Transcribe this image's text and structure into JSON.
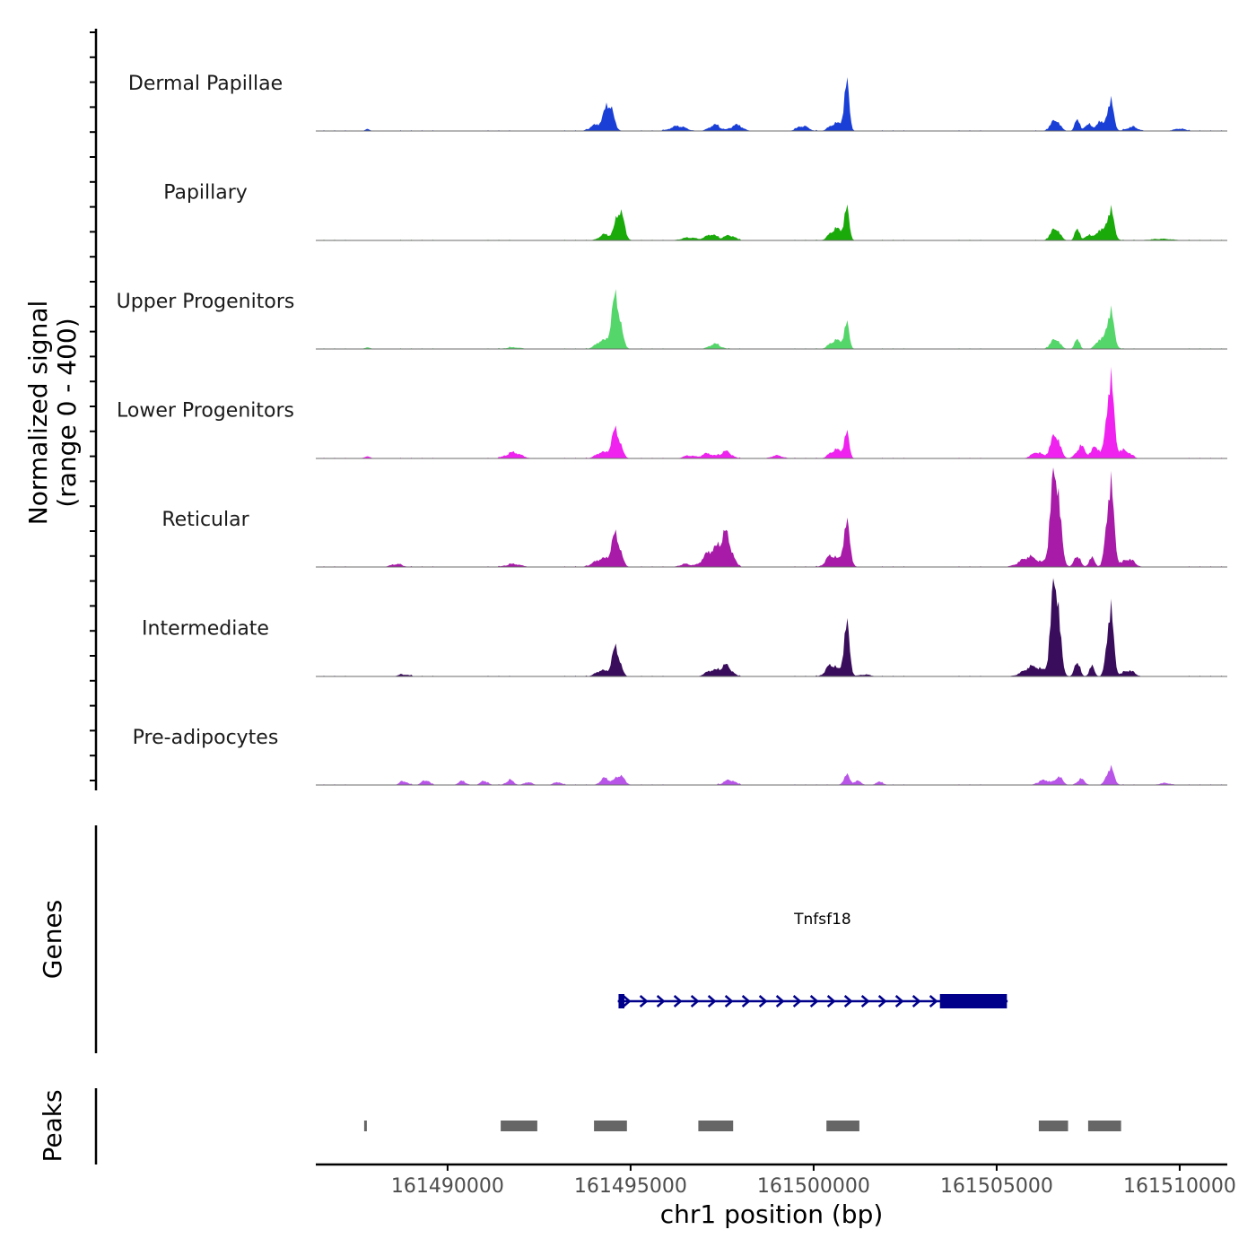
{
  "chart_data": {
    "type": "area",
    "title": "",
    "xlabel": "chr1 position (bp)",
    "ylabel_line1": "Normalized signal",
    "ylabel_line2": "(range 0 - 400)",
    "genes_label": "Genes",
    "peaks_label": "Peaks",
    "xlim": [
      161486400,
      161511300
    ],
    "ylim": [
      0,
      400
    ],
    "x_ticks": [
      161490000,
      161495000,
      161500000,
      161505000,
      161510000
    ],
    "x_tick_labels": [
      "161490000",
      "161495000",
      "161500000",
      "161505000",
      "161510000"
    ],
    "series": [
      {
        "name": "Dermal Papillae",
        "color": "#1a3fd6",
        "peaks": [
          [
            161487800,
            10,
            60
          ],
          [
            161494400,
            140,
            120
          ],
          [
            161494050,
            30,
            150
          ],
          [
            161496300,
            25,
            200
          ],
          [
            161497300,
            30,
            150
          ],
          [
            161497900,
            30,
            150
          ],
          [
            161499700,
            25,
            150
          ],
          [
            161500600,
            40,
            150
          ],
          [
            161500900,
            230,
            70
          ],
          [
            161506600,
            55,
            120
          ],
          [
            161507200,
            70,
            60
          ],
          [
            161507500,
            40,
            80
          ],
          [
            161507800,
            50,
            80
          ],
          [
            161508100,
            150,
            90
          ],
          [
            161508700,
            20,
            150
          ],
          [
            161510000,
            12,
            150
          ]
        ]
      },
      {
        "name": "Papillary",
        "color": "#1aaa0a",
        "peaks": [
          [
            161494300,
            30,
            150
          ],
          [
            161494700,
            155,
            110
          ],
          [
            161496600,
            15,
            200
          ],
          [
            161497200,
            30,
            150
          ],
          [
            161497700,
            25,
            150
          ],
          [
            161500600,
            60,
            150
          ],
          [
            161500900,
            150,
            70
          ],
          [
            161506600,
            60,
            120
          ],
          [
            161507200,
            70,
            60
          ],
          [
            161507500,
            30,
            80
          ],
          [
            161507800,
            50,
            100
          ],
          [
            161508100,
            150,
            100
          ],
          [
            161509500,
            8,
            300
          ]
        ]
      },
      {
        "name": "Upper Progenitors",
        "color": "#55d66a",
        "peaks": [
          [
            161487800,
            8,
            80
          ],
          [
            161491800,
            8,
            200
          ],
          [
            161494200,
            40,
            150
          ],
          [
            161494600,
            255,
            120
          ],
          [
            161497300,
            25,
            150
          ],
          [
            161500600,
            45,
            150
          ],
          [
            161500900,
            120,
            70
          ],
          [
            161506600,
            50,
            120
          ],
          [
            161507200,
            60,
            60
          ],
          [
            161507800,
            45,
            100
          ],
          [
            161508100,
            185,
            100
          ]
        ]
      },
      {
        "name": "Lower Progenitors",
        "color": "#ef22ef",
        "peaks": [
          [
            161487800,
            10,
            80
          ],
          [
            161491800,
            30,
            200
          ],
          [
            161494200,
            30,
            150
          ],
          [
            161494600,
            140,
            120
          ],
          [
            161496600,
            15,
            150
          ],
          [
            161497100,
            25,
            150
          ],
          [
            161497600,
            35,
            150
          ],
          [
            161499000,
            15,
            150
          ],
          [
            161500600,
            45,
            150
          ],
          [
            161500900,
            120,
            70
          ],
          [
            161506100,
            30,
            150
          ],
          [
            161506600,
            120,
            120
          ],
          [
            161507300,
            60,
            120
          ],
          [
            161507700,
            60,
            100
          ],
          [
            161508100,
            385,
            100
          ],
          [
            161508500,
            40,
            150
          ]
        ]
      },
      {
        "name": "Reticular",
        "color": "#a81aa8",
        "peaks": [
          [
            161488600,
            15,
            150
          ],
          [
            161491800,
            15,
            200
          ],
          [
            161494200,
            40,
            200
          ],
          [
            161494600,
            155,
            120
          ],
          [
            161496500,
            15,
            150
          ],
          [
            161497200,
            80,
            200
          ],
          [
            161497600,
            155,
            150
          ],
          [
            161500500,
            60,
            150
          ],
          [
            161500900,
            210,
            90
          ],
          [
            161505900,
            50,
            250
          ],
          [
            161506600,
            490,
            120
          ],
          [
            161507200,
            60,
            80
          ],
          [
            161507600,
            45,
            80
          ],
          [
            161508100,
            405,
            100
          ],
          [
            161508600,
            40,
            150
          ]
        ]
      },
      {
        "name": "Intermediate",
        "color": "#3a0d5c",
        "peaks": [
          [
            161488800,
            10,
            150
          ],
          [
            161494200,
            30,
            150
          ],
          [
            161494600,
            140,
            110
          ],
          [
            161497200,
            30,
            150
          ],
          [
            161497600,
            55,
            150
          ],
          [
            161500500,
            60,
            150
          ],
          [
            161500900,
            250,
            80
          ],
          [
            161501400,
            10,
            150
          ],
          [
            161506000,
            50,
            250
          ],
          [
            161506600,
            490,
            110
          ],
          [
            161507200,
            80,
            70
          ],
          [
            161507600,
            50,
            70
          ],
          [
            161508100,
            330,
            90
          ],
          [
            161508600,
            30,
            150
          ]
        ]
      },
      {
        "name": "Pre-adipocytes",
        "color": "#b855e8",
        "peaks": [
          [
            161488800,
            20,
            100
          ],
          [
            161489400,
            25,
            100
          ],
          [
            161490400,
            20,
            100
          ],
          [
            161491000,
            20,
            100
          ],
          [
            161491700,
            25,
            100
          ],
          [
            161492200,
            15,
            100
          ],
          [
            161493000,
            15,
            100
          ],
          [
            161494300,
            35,
            120
          ],
          [
            161494700,
            50,
            120
          ],
          [
            161497700,
            25,
            150
          ],
          [
            161500900,
            50,
            80
          ],
          [
            161501200,
            20,
            100
          ],
          [
            161501800,
            15,
            100
          ],
          [
            161506300,
            25,
            150
          ],
          [
            161506700,
            40,
            100
          ],
          [
            161507300,
            30,
            100
          ],
          [
            161508100,
            85,
            100
          ],
          [
            161509600,
            10,
            150
          ]
        ]
      }
    ],
    "gene": {
      "name": "Tnfsf18",
      "strand": "+",
      "start": 161494650,
      "end": 161505300,
      "exons": [
        [
          161494670,
          161494830
        ],
        [
          161503450,
          161505280
        ]
      ]
    },
    "peaks_regions": [
      [
        161487720,
        161487780
      ],
      [
        161491450,
        161492450
      ],
      [
        161494000,
        161494900
      ],
      [
        161496850,
        161497800
      ],
      [
        161500350,
        161501250
      ],
      [
        161506150,
        161506950
      ],
      [
        161507500,
        161508400
      ]
    ]
  }
}
